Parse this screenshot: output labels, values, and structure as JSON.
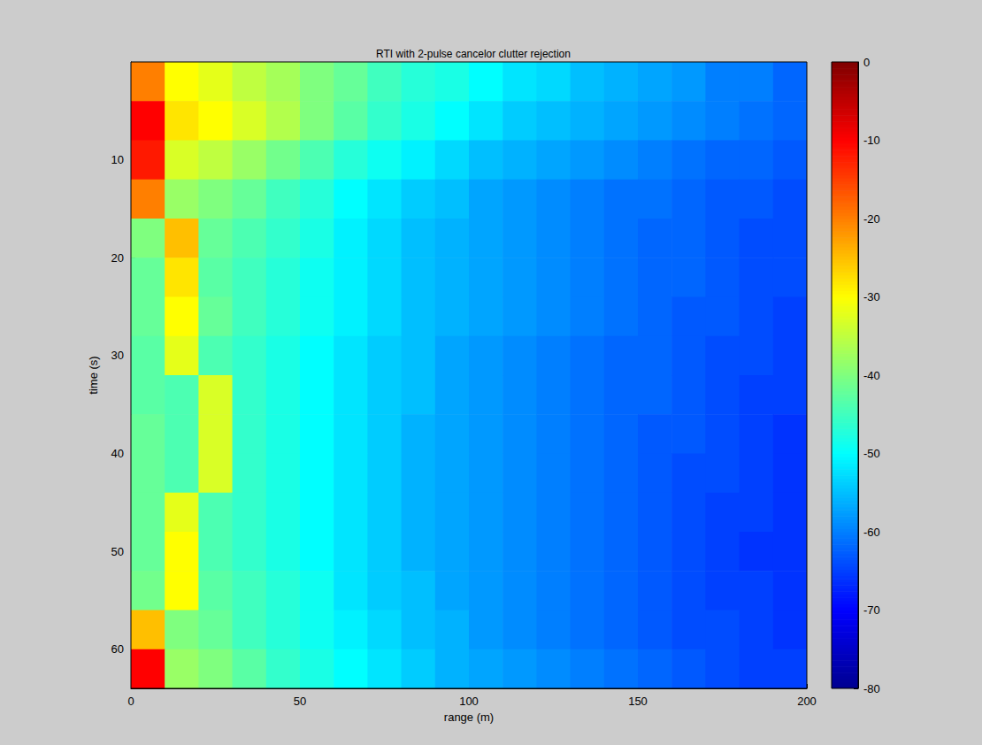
{
  "chart_data": {
    "type": "heatmap",
    "title": "RTI with 2-pulse cancelor clutter rejection",
    "x_label": "range (m)",
    "y_label": "time (s)",
    "x": [
      5,
      15,
      25,
      35,
      45,
      55,
      65,
      75,
      85,
      95,
      105,
      115,
      125,
      135,
      145,
      155,
      165,
      175,
      185,
      195
    ],
    "y": [
      2,
      6,
      10,
      14,
      18,
      22,
      26,
      30,
      34,
      38,
      42,
      46,
      50,
      54,
      58,
      62
    ],
    "values": [
      [
        -20,
        -30,
        -32,
        -35,
        -37,
        -40,
        -42,
        -45,
        -47,
        -48,
        -50,
        -52,
        -53,
        -55,
        -56,
        -57,
        -58,
        -60,
        -60,
        -62
      ],
      [
        -10,
        -28,
        -30,
        -33,
        -36,
        -40,
        -43,
        -46,
        -48,
        -50,
        -52,
        -54,
        -55,
        -56,
        -57,
        -58,
        -59,
        -60,
        -61,
        -62
      ],
      [
        -12,
        -33,
        -35,
        -38,
        -41,
        -44,
        -47,
        -49,
        -51,
        -53,
        -55,
        -56,
        -57,
        -58,
        -59,
        -60,
        -61,
        -62,
        -62,
        -63
      ],
      [
        -20,
        -38,
        -40,
        -42,
        -45,
        -47,
        -50,
        -52,
        -54,
        -55,
        -57,
        -58,
        -59,
        -60,
        -61,
        -61,
        -62,
        -63,
        -63,
        -64
      ],
      [
        -40,
        -25,
        -42,
        -44,
        -46,
        -48,
        -51,
        -53,
        -55,
        -56,
        -57,
        -58,
        -59,
        -60,
        -61,
        -62,
        -62,
        -63,
        -64,
        -64
      ],
      [
        -42,
        -28,
        -43,
        -45,
        -47,
        -49,
        -51,
        -53,
        -55,
        -56,
        -57,
        -58,
        -59,
        -60,
        -61,
        -62,
        -62,
        -63,
        -64,
        -64
      ],
      [
        -42,
        -30,
        -42,
        -45,
        -47,
        -49,
        -51,
        -53,
        -55,
        -56,
        -57,
        -58,
        -59,
        -60,
        -61,
        -62,
        -63,
        -63,
        -64,
        -65
      ],
      [
        -43,
        -32,
        -44,
        -46,
        -48,
        -50,
        -52,
        -54,
        -55,
        -57,
        -58,
        -59,
        -60,
        -61,
        -62,
        -62,
        -63,
        -64,
        -64,
        -65
      ],
      [
        -43,
        -44,
        -33,
        -46,
        -48,
        -50,
        -52,
        -54,
        -55,
        -57,
        -58,
        -59,
        -60,
        -61,
        -62,
        -62,
        -63,
        -64,
        -65,
        -65
      ],
      [
        -42,
        -44,
        -33,
        -46,
        -48,
        -50,
        -52,
        -54,
        -56,
        -57,
        -58,
        -59,
        -60,
        -61,
        -62,
        -63,
        -63,
        -64,
        -65,
        -66
      ],
      [
        -42,
        -44,
        -33,
        -46,
        -48,
        -50,
        -52,
        -54,
        -56,
        -57,
        -58,
        -59,
        -60,
        -61,
        -62,
        -63,
        -64,
        -64,
        -65,
        -66
      ],
      [
        -42,
        -32,
        -44,
        -46,
        -48,
        -50,
        -52,
        -54,
        -56,
        -57,
        -58,
        -59,
        -60,
        -61,
        -62,
        -63,
        -64,
        -65,
        -65,
        -66
      ],
      [
        -42,
        -30,
        -44,
        -46,
        -48,
        -50,
        -52,
        -54,
        -56,
        -57,
        -58,
        -59,
        -60,
        -61,
        -62,
        -63,
        -64,
        -65,
        -66,
        -66
      ],
      [
        -41,
        -30,
        -43,
        -45,
        -47,
        -49,
        -52,
        -54,
        -55,
        -57,
        -58,
        -59,
        -60,
        -61,
        -62,
        -63,
        -64,
        -65,
        -65,
        -66
      ],
      [
        -25,
        -40,
        -42,
        -45,
        -47,
        -49,
        -51,
        -53,
        -55,
        -56,
        -58,
        -59,
        -60,
        -61,
        -62,
        -63,
        -64,
        -64,
        -65,
        -66
      ],
      [
        -10,
        -38,
        -40,
        -43,
        -46,
        -48,
        -50,
        -52,
        -54,
        -56,
        -57,
        -58,
        -59,
        -60,
        -61,
        -62,
        -63,
        -64,
        -65,
        -65
      ]
    ],
    "xlim": [
      0,
      200
    ],
    "xticks": [
      0,
      50,
      100,
      150,
      200
    ],
    "ylim": [
      0,
      64
    ],
    "yticks": [
      10,
      20,
      30,
      40,
      50,
      60
    ],
    "colorbar_range": [
      -80,
      0
    ],
    "colorbar_ticks": [
      -80,
      -70,
      -60,
      -50,
      -40,
      -30,
      -20,
      -10,
      0
    ]
  }
}
